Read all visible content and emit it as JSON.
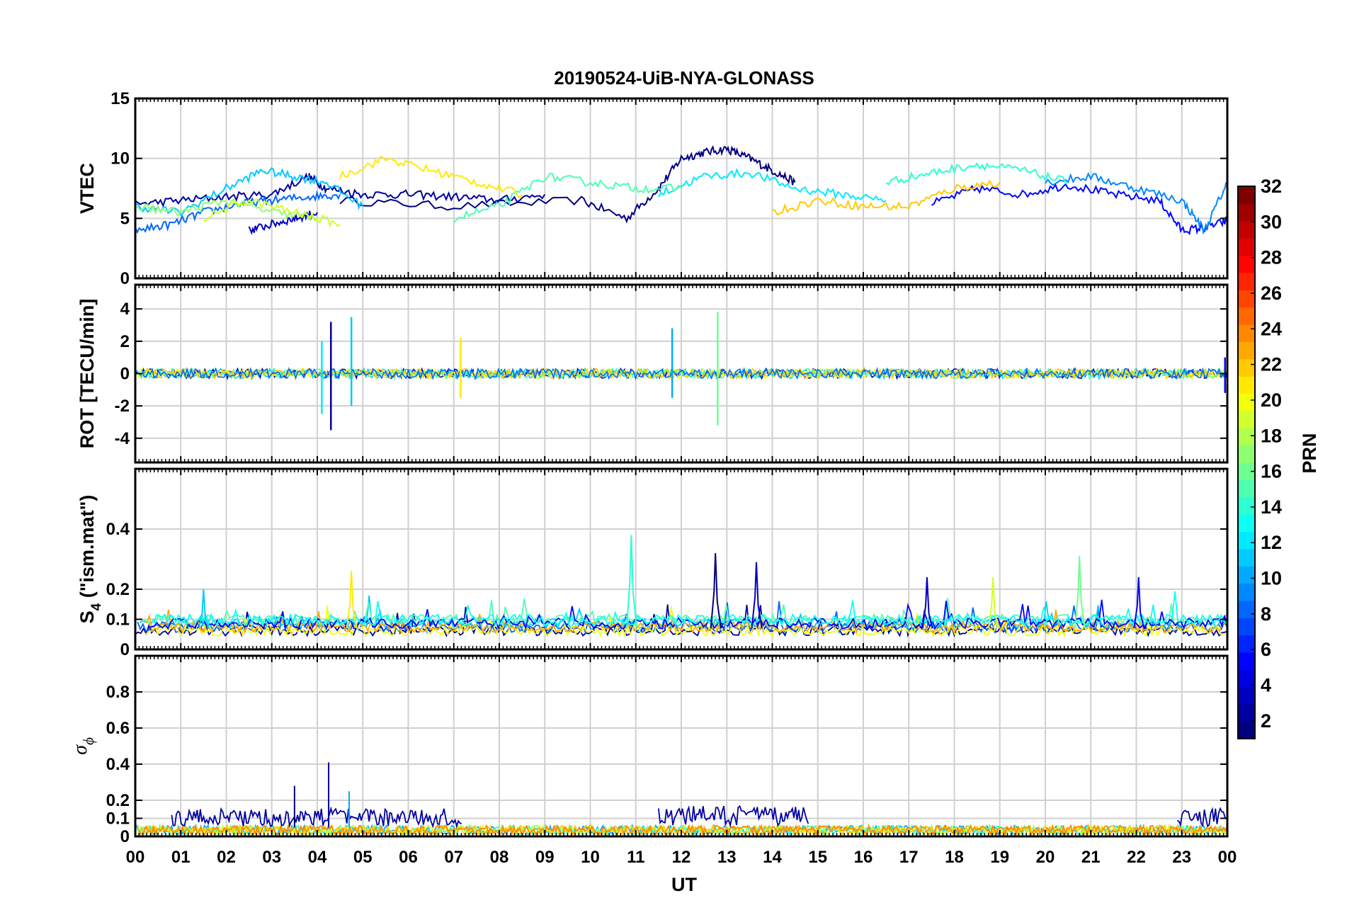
{
  "chart_data": {
    "type": "line",
    "title": "20190524-UiB-NYA-GLONASS",
    "xlabel": "UT",
    "x_tick_labels": [
      "00",
      "01",
      "02",
      "03",
      "04",
      "05",
      "06",
      "07",
      "08",
      "09",
      "10",
      "11",
      "12",
      "13",
      "14",
      "15",
      "16",
      "17",
      "18",
      "19",
      "20",
      "21",
      "22",
      "23",
      "00"
    ],
    "xlim": [
      0,
      24
    ],
    "grid": true,
    "colorbar": {
      "label": "PRN",
      "range": [
        1,
        32
      ],
      "tick_labels": [
        "2",
        "4",
        "6",
        "8",
        "10",
        "12",
        "14",
        "16",
        "18",
        "20",
        "22",
        "24",
        "26",
        "28",
        "30",
        "32"
      ],
      "colormap": "jet"
    },
    "panels": [
      {
        "name": "vtec",
        "ylabel": "VTEC",
        "ylim": [
          0,
          15
        ],
        "yticks": [
          0,
          5,
          10,
          15
        ],
        "ytick_labels": [
          "0",
          "5",
          "10",
          "15"
        ],
        "series": [
          {
            "prn": 1,
            "x": [
              4.5,
              7,
              9.8,
              10.8,
              11.5,
              12.0,
              12.5,
              13.0,
              13.5,
              14.0,
              14.5
            ],
            "y": [
              6.5,
              6.0,
              6.5,
              5.0,
              7.5,
              10.0,
              10.5,
              10.8,
              10.0,
              9.0,
              8.0
            ]
          },
          {
            "prn": 2,
            "x": [
              0,
              1,
              2,
              3,
              3.8,
              4.2,
              5.0,
              6.0,
              7.0,
              8.0,
              9.0
            ],
            "y": [
              6.2,
              6.5,
              6.8,
              7.0,
              8.5,
              7.5,
              7.0,
              7.0,
              6.8,
              6.5,
              7.0
            ]
          },
          {
            "prn": 3,
            "x": [
              2.5,
              3.0,
              3.5,
              4.0
            ],
            "y": [
              4.0,
              4.5,
              5.0,
              5.5
            ]
          },
          {
            "prn": 5,
            "x": [
              17.5,
              18.5,
              19.5,
              20.5,
              21.5,
              22.5,
              23.0,
              23.5,
              24.0
            ],
            "y": [
              6.2,
              7.5,
              7.0,
              7.8,
              7.0,
              6.5,
              4.0,
              4.2,
              4.8
            ]
          },
          {
            "prn": 8,
            "x": [
              0,
              0.8,
              1.5,
              2.3,
              3.0,
              3.8,
              4.5
            ],
            "y": [
              4.0,
              4.5,
              5.5,
              6.2,
              6.5,
              6.8,
              7.0
            ]
          },
          {
            "prn": 9,
            "x": [
              20.0,
              21.0,
              22.0,
              23.0,
              23.5,
              24.0
            ],
            "y": [
              8.0,
              8.5,
              7.5,
              6.5,
              4.0,
              8.0
            ]
          },
          {
            "prn": 11,
            "x": [
              0,
              1.0,
              2.0,
              2.8,
              3.5,
              4.2,
              5.0
            ],
            "y": [
              6.0,
              5.5,
              7.5,
              9.0,
              8.5,
              8.0,
              6.0
            ]
          },
          {
            "prn": 12,
            "x": [
              11.5,
              12.5,
              13.5,
              14.5,
              15.5,
              16.5
            ],
            "y": [
              7.0,
              8.5,
              8.8,
              7.5,
              7.0,
              6.5
            ]
          },
          {
            "prn": 14,
            "x": [
              16.5,
              17.5,
              18.5,
              19.5,
              20.5
            ],
            "y": [
              8.0,
              8.8,
              9.5,
              9.0,
              8.0
            ]
          },
          {
            "prn": 15,
            "x": [
              7.0,
              8.0,
              9.0,
              10.0,
              11.0,
              12.0
            ],
            "y": [
              5.0,
              6.0,
              8.5,
              8.0,
              7.5,
              7.5
            ]
          },
          {
            "prn": 17,
            "x": [
              0,
              1.0,
              2.0,
              3.0,
              4.0
            ],
            "y": [
              6.0,
              5.5,
              6.5,
              5.5,
              5.0
            ]
          },
          {
            "prn": 19,
            "x": [
              1.5,
              2.5,
              3.5,
              4.5
            ],
            "y": [
              5.0,
              6.5,
              5.5,
              4.5
            ]
          },
          {
            "prn": 21,
            "x": [
              4.5,
              5.5,
              6.5,
              7.5,
              8.5
            ],
            "y": [
              8.5,
              10.0,
              9.0,
              8.0,
              7.0
            ]
          },
          {
            "prn": 22,
            "x": [
              14.0,
              15.0,
              16.0,
              17.0,
              18.0,
              19.0
            ],
            "y": [
              5.5,
              6.5,
              6.0,
              6.0,
              7.5,
              8.0
            ]
          }
        ]
      },
      {
        "name": "rot",
        "ylabel": "ROT [TECU/min]",
        "ylim": [
          -5.5,
          5.5
        ],
        "yticks": [
          -4,
          -2,
          0,
          2,
          4
        ],
        "ytick_labels": [
          "-4",
          "-2",
          "0",
          "2",
          "4"
        ],
        "spikes": [
          {
            "prn": 2,
            "x": 4.3,
            "min": -3.5,
            "max": 3.2
          },
          {
            "prn": 12,
            "x": 4.1,
            "min": -2.5,
            "max": 2.0
          },
          {
            "prn": 11,
            "x": 4.75,
            "min": -2.0,
            "max": 3.5
          },
          {
            "prn": 21,
            "x": 7.15,
            "min": -1.5,
            "max": 2.2
          },
          {
            "prn": 10,
            "x": 11.8,
            "min": -1.5,
            "max": 2.8
          },
          {
            "prn": 16,
            "x": 12.8,
            "min": -3.2,
            "max": 3.8
          },
          {
            "prn": 5,
            "x": 23.95,
            "min": -1.2,
            "max": 1.0
          }
        ]
      },
      {
        "name": "s4",
        "ylabel": "S",
        "ylabel_sub": "4",
        "ylabel_tail": " (\"ism.mat\")",
        "ylim": [
          0,
          0.6
        ],
        "yticks": [
          0,
          0.1,
          0.2,
          0.4
        ],
        "ytick_labels": [
          "0",
          "0.1",
          "0.2",
          "0.4"
        ],
        "peaks": [
          {
            "prn": 14,
            "x": 10.9,
            "y": 0.38
          },
          {
            "prn": 1,
            "x": 12.75,
            "y": 0.32
          },
          {
            "prn": 3,
            "x": 13.65,
            "y": 0.29
          },
          {
            "prn": 16,
            "x": 20.75,
            "y": 0.31
          },
          {
            "prn": 21,
            "x": 4.75,
            "y": 0.26
          },
          {
            "prn": 5,
            "x": 22.05,
            "y": 0.24
          },
          {
            "prn": 3,
            "x": 17.4,
            "y": 0.24
          },
          {
            "prn": 19,
            "x": 18.85,
            "y": 0.24
          },
          {
            "prn": 11,
            "x": 1.5,
            "y": 0.2
          }
        ]
      },
      {
        "name": "sigma_phi",
        "ylabel": "σ",
        "ylabel_sub": "ϕ",
        "ylim": [
          0,
          1
        ],
        "yticks": [
          0,
          0.1,
          0.2,
          0.4,
          0.6,
          0.8
        ],
        "ytick_labels": [
          "0",
          "0.1",
          "0.2",
          "0.4",
          "0.6",
          "0.8"
        ],
        "peaks": [
          {
            "prn": 2,
            "x": 4.25,
            "y": 0.41
          },
          {
            "prn": 1,
            "x": 3.5,
            "y": 0.28
          },
          {
            "prn": 10,
            "x": 4.7,
            "y": 0.25
          }
        ]
      }
    ]
  }
}
